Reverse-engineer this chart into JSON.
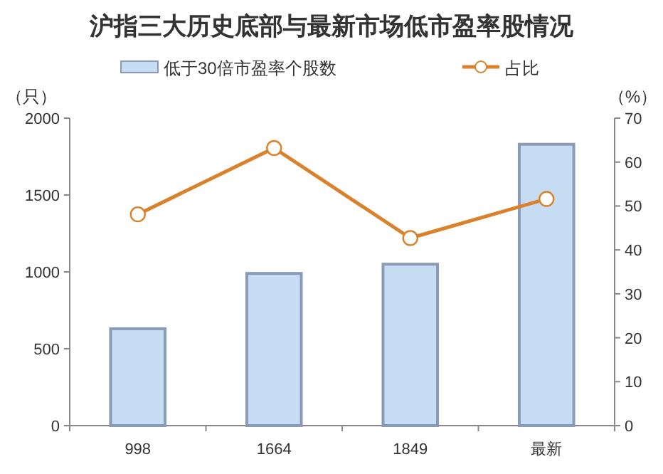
{
  "chart_data": {
    "type": "bar",
    "title": "沪指三大历史底部与最新市场低市盈率股情况",
    "categories": [
      "998",
      "1664",
      "1849",
      "最新"
    ],
    "series": [
      {
        "name": "低于30倍市盈率个股数",
        "color": "#c6dcf2",
        "values": [
          630,
          990,
          1050,
          1830
        ]
      },
      {
        "name": "占比",
        "type": "line",
        "color": "#d9822b",
        "axis": "y2",
        "marker": "circle",
        "values": [
          48.1,
          63.2,
          42.7,
          51.6
        ]
      }
    ],
    "ylabel": "（只）",
    "y2label": "（%）",
    "ylim": [
      0,
      2000
    ],
    "yticks": [
      0,
      500,
      1000,
      1500,
      2000
    ],
    "y2lim": [
      0,
      70
    ],
    "y2ticks": [
      0,
      10,
      20,
      30,
      40,
      50,
      60,
      70
    ],
    "legend": "top"
  }
}
